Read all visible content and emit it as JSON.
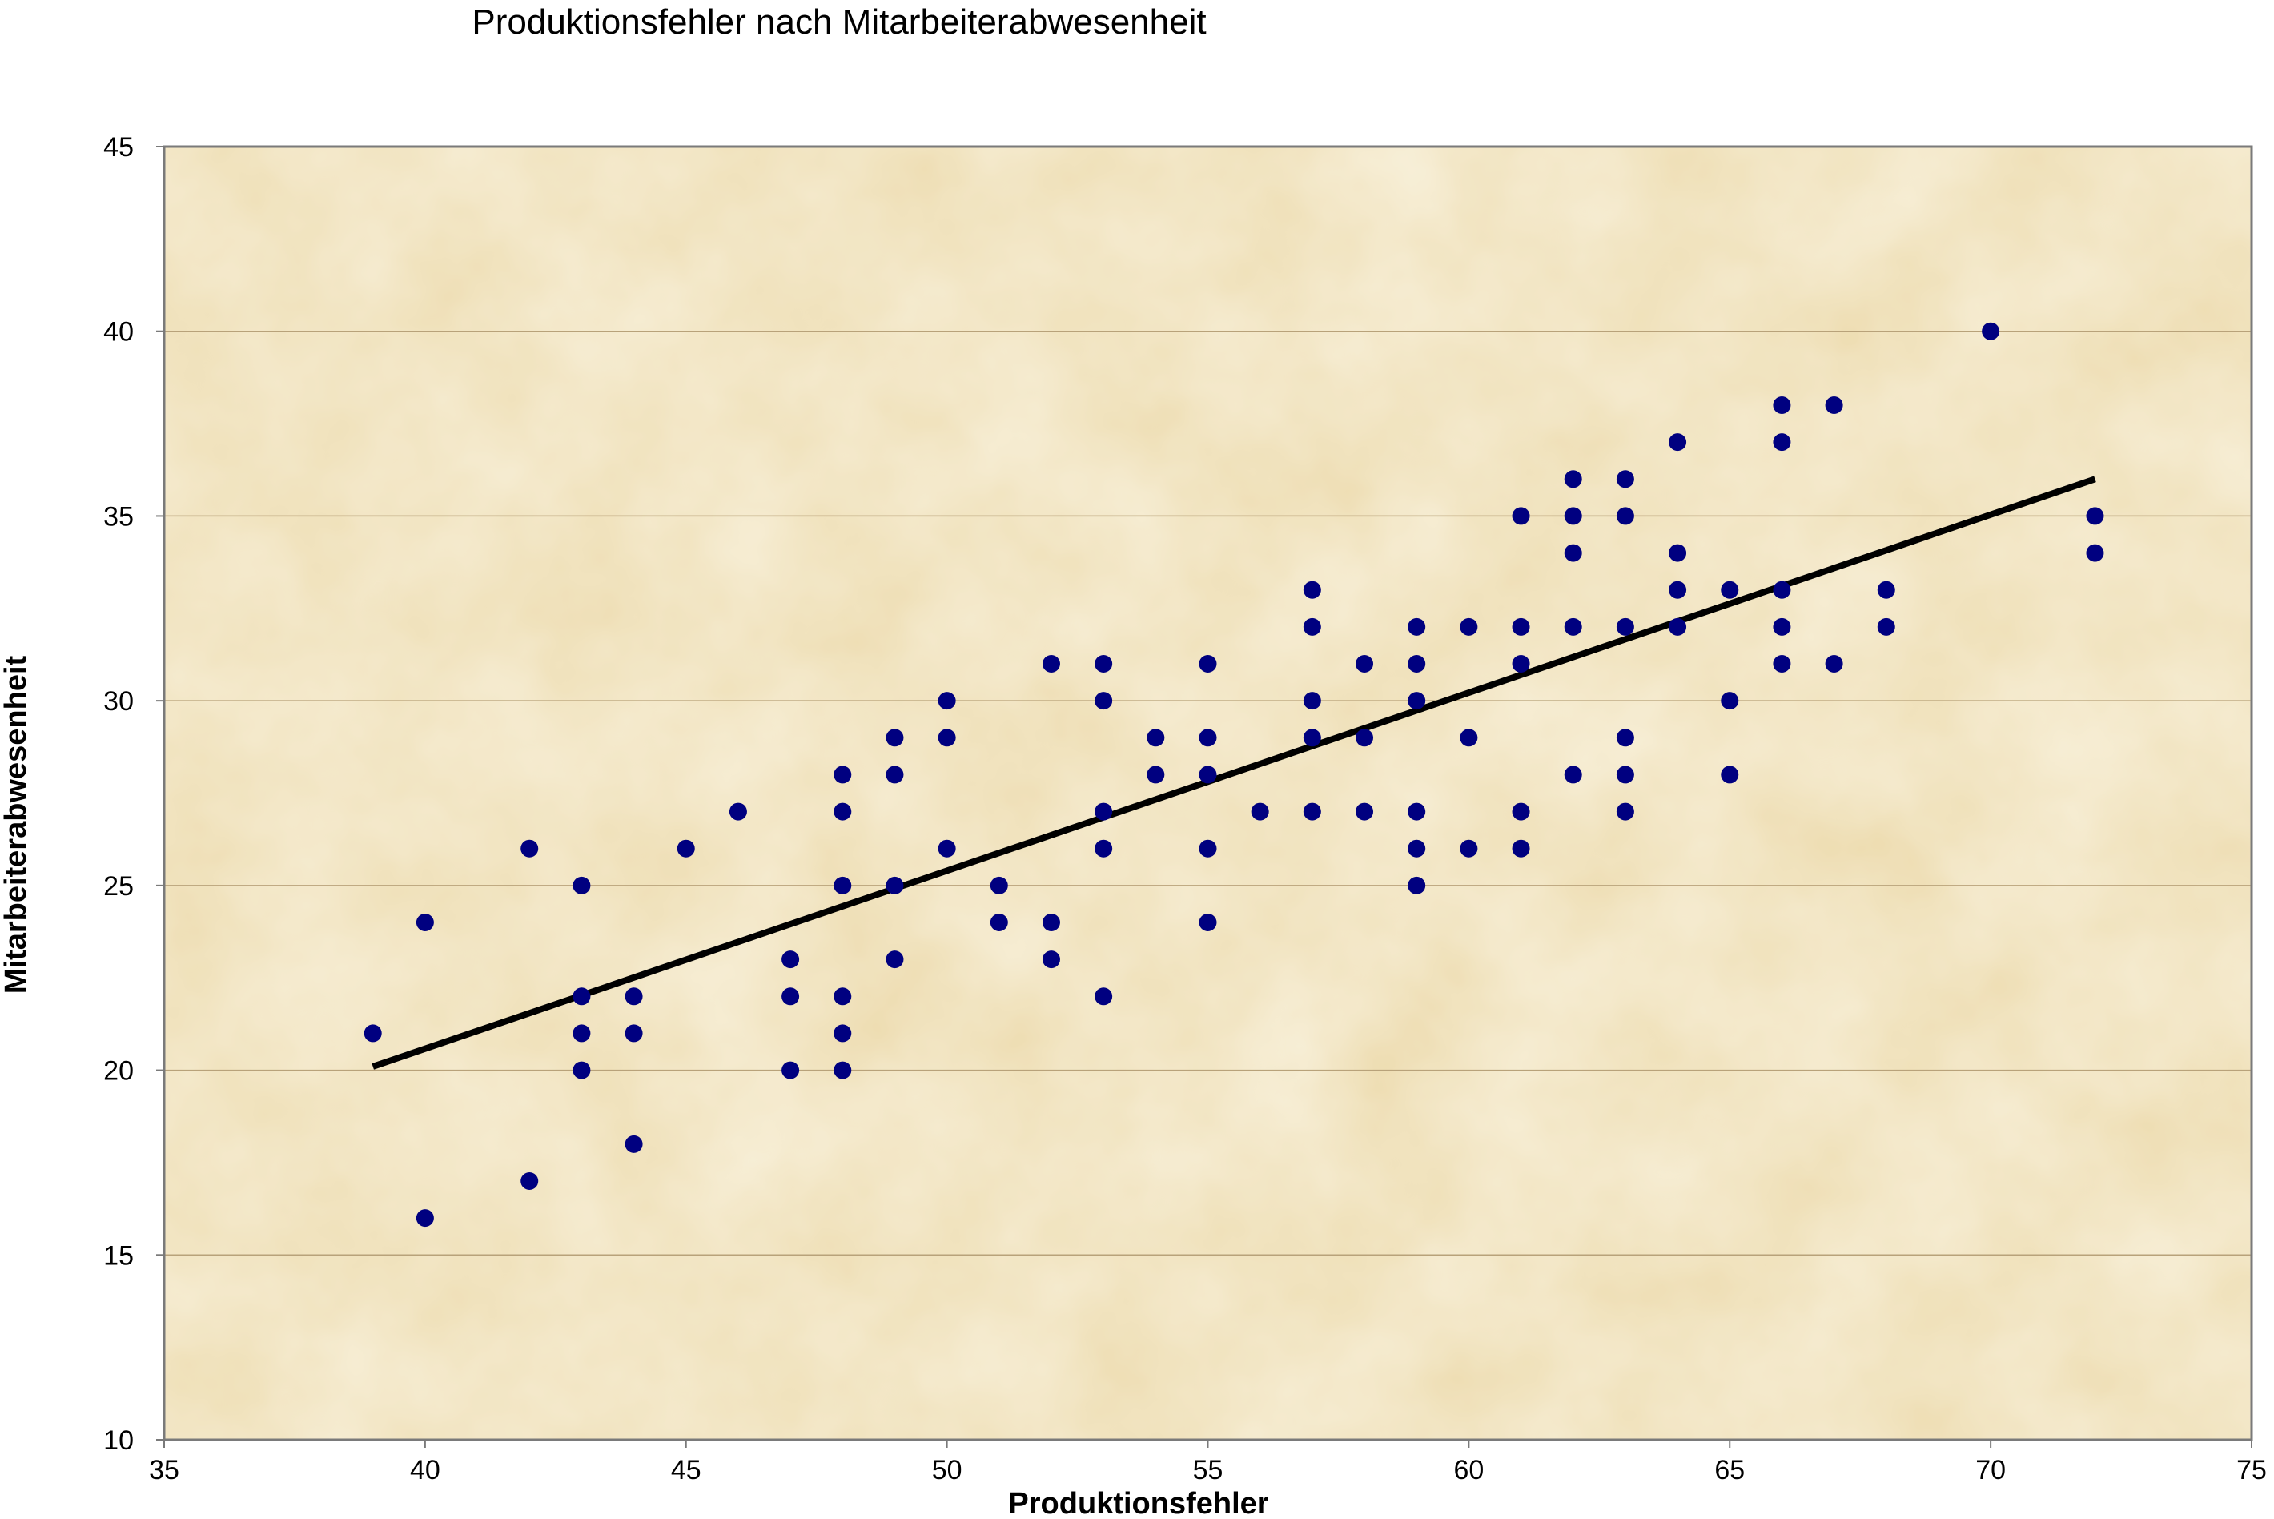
{
  "chart_data": {
    "type": "scatter",
    "title": "Produktionsfehler nach Mitarbeiterabwesenheit",
    "xlabel": "Produktionsfehler",
    "ylabel": "Mitarbeiterabwesenheit",
    "xlim": [
      35,
      75
    ],
    "ylim": [
      10,
      45
    ],
    "x_ticks": [
      "35",
      "40",
      "45",
      "50",
      "55",
      "60",
      "65",
      "70",
      "75"
    ],
    "y_ticks": [
      "10",
      "15",
      "20",
      "25",
      "30",
      "35",
      "40",
      "45"
    ],
    "grid": "horizontal",
    "legend": "none",
    "colors": {
      "points": "#000080",
      "trendline": "#000000",
      "plot_background": "#ecd9a8",
      "gridline": "#b8a27a",
      "frame": "#7a7a7a"
    },
    "series": [
      {
        "points": [
          [
            39,
            21
          ],
          [
            40,
            24
          ],
          [
            40,
            16
          ],
          [
            42,
            26
          ],
          [
            42,
            17
          ],
          [
            43,
            25
          ],
          [
            43,
            22
          ],
          [
            43,
            21
          ],
          [
            43,
            20
          ],
          [
            44,
            22
          ],
          [
            44,
            21
          ],
          [
            44,
            18
          ],
          [
            45,
            26
          ],
          [
            46,
            27
          ],
          [
            47,
            23
          ],
          [
            47,
            22
          ],
          [
            47,
            20
          ],
          [
            48,
            28
          ],
          [
            48,
            27
          ],
          [
            48,
            25
          ],
          [
            48,
            22
          ],
          [
            48,
            21
          ],
          [
            48,
            20
          ],
          [
            49,
            29
          ],
          [
            49,
            28
          ],
          [
            49,
            25
          ],
          [
            49,
            23
          ],
          [
            50,
            30
          ],
          [
            50,
            29
          ],
          [
            50,
            26
          ],
          [
            51,
            25
          ],
          [
            51,
            24
          ],
          [
            52,
            31
          ],
          [
            52,
            24
          ],
          [
            52,
            23
          ],
          [
            53,
            31
          ],
          [
            53,
            30
          ],
          [
            53,
            27
          ],
          [
            53,
            26
          ],
          [
            53,
            22
          ],
          [
            54,
            29
          ],
          [
            54,
            28
          ],
          [
            55,
            31
          ],
          [
            55,
            29
          ],
          [
            55,
            28
          ],
          [
            55,
            26
          ],
          [
            55,
            24
          ],
          [
            56,
            27
          ],
          [
            57,
            33
          ],
          [
            57,
            32
          ],
          [
            57,
            30
          ],
          [
            57,
            29
          ],
          [
            57,
            27
          ],
          [
            58,
            31
          ],
          [
            58,
            29
          ],
          [
            58,
            27
          ],
          [
            59,
            32
          ],
          [
            59,
            31
          ],
          [
            59,
            30
          ],
          [
            59,
            27
          ],
          [
            59,
            26
          ],
          [
            59,
            25
          ],
          [
            60,
            32
          ],
          [
            60,
            29
          ],
          [
            60,
            26
          ],
          [
            61,
            35
          ],
          [
            61,
            32
          ],
          [
            61,
            31
          ],
          [
            61,
            27
          ],
          [
            61,
            26
          ],
          [
            62,
            36
          ],
          [
            62,
            35
          ],
          [
            62,
            34
          ],
          [
            62,
            32
          ],
          [
            62,
            28
          ],
          [
            63,
            36
          ],
          [
            63,
            35
          ],
          [
            63,
            32
          ],
          [
            63,
            29
          ],
          [
            63,
            28
          ],
          [
            63,
            27
          ],
          [
            64,
            37
          ],
          [
            64,
            34
          ],
          [
            64,
            33
          ],
          [
            64,
            32
          ],
          [
            65,
            33
          ],
          [
            65,
            30
          ],
          [
            65,
            28
          ],
          [
            66,
            38
          ],
          [
            66,
            37
          ],
          [
            66,
            33
          ],
          [
            66,
            32
          ],
          [
            66,
            31
          ],
          [
            67,
            38
          ],
          [
            67,
            31
          ],
          [
            68,
            33
          ],
          [
            68,
            32
          ],
          [
            70,
            40
          ],
          [
            72,
            35
          ],
          [
            72,
            34
          ]
        ]
      }
    ],
    "trendline": {
      "x": [
        39,
        72
      ],
      "y": [
        20.1,
        36.0
      ]
    }
  }
}
